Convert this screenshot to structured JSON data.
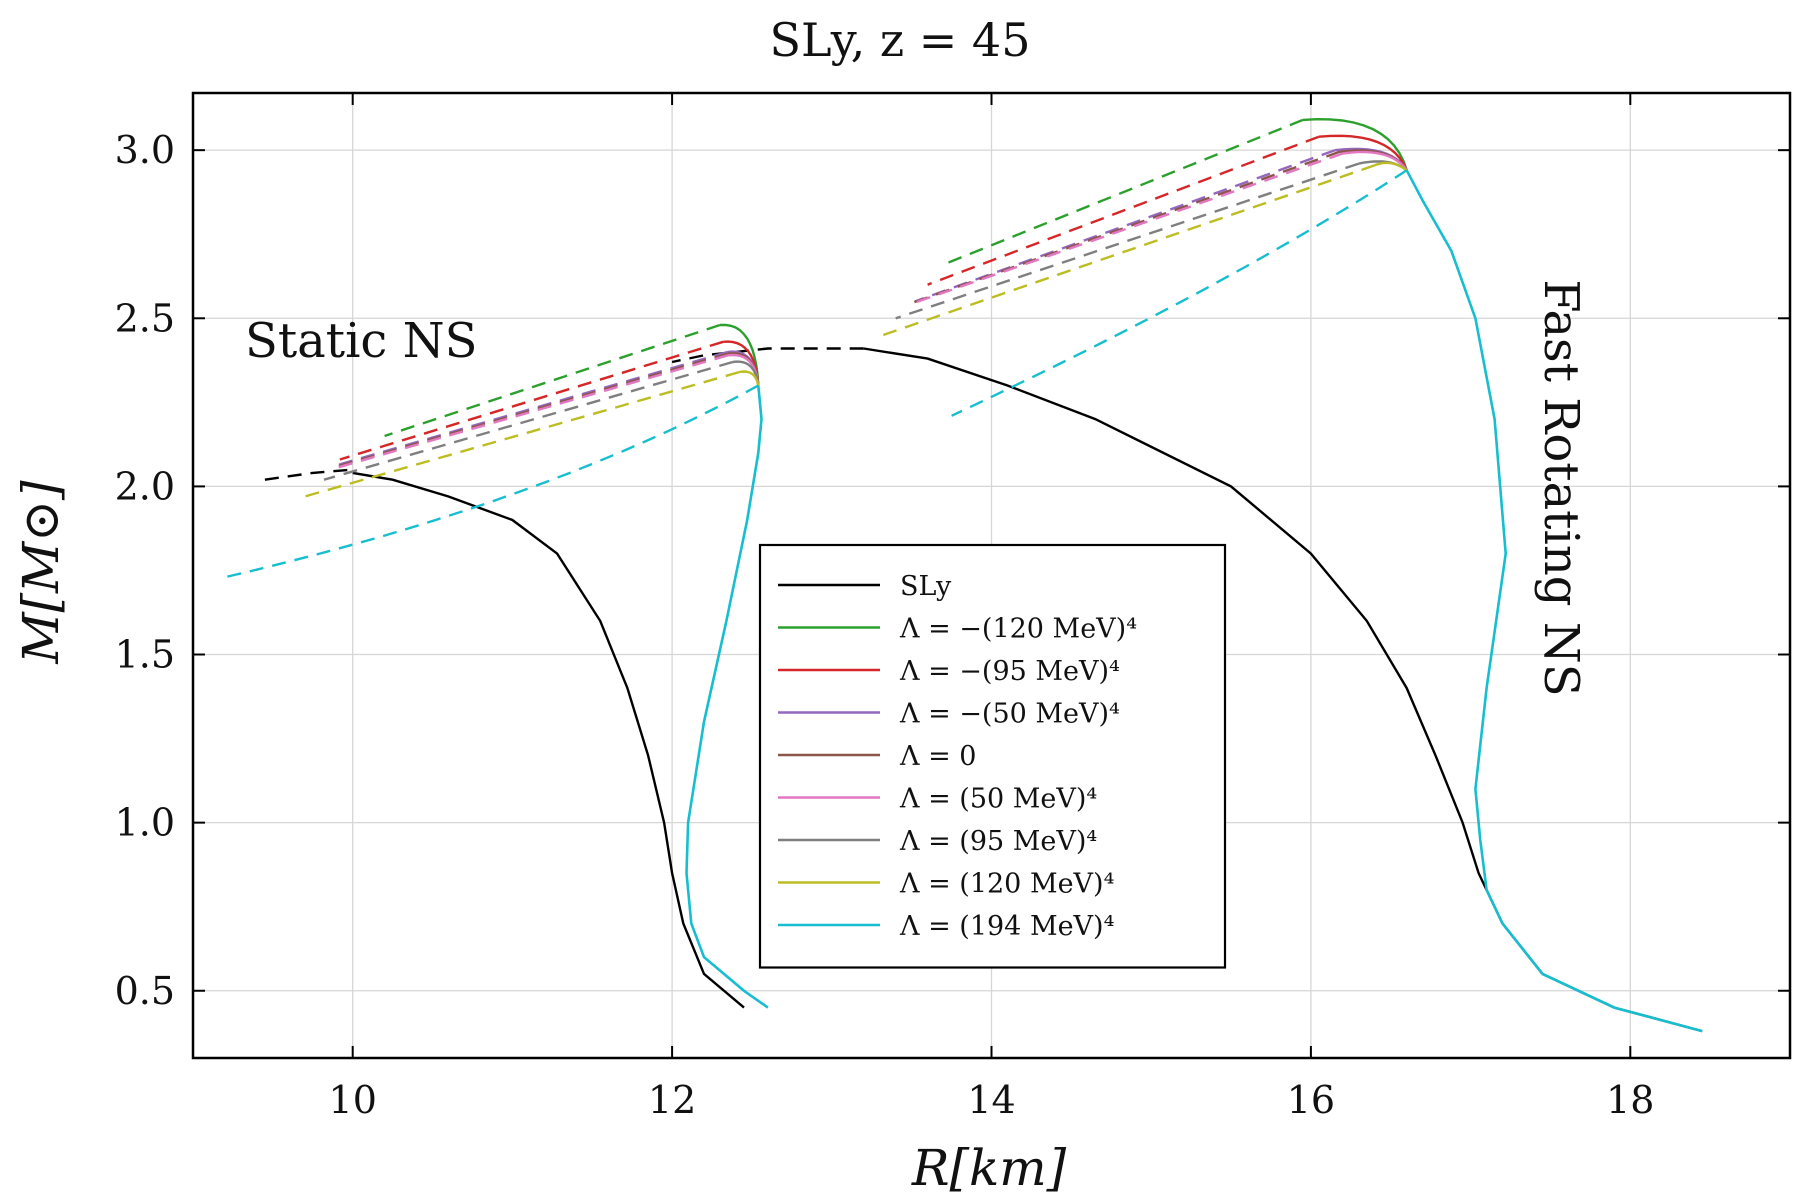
{
  "chart_data": {
    "type": "line",
    "title": "SLy,  z = 45",
    "xlabel": "R[km]",
    "ylabel": "M[M⊙]",
    "xlim": [
      9.0,
      19.0
    ],
    "ylim": [
      0.3,
      3.17
    ],
    "grid": true,
    "legend_placement": "center-bottom",
    "xticks": [
      10,
      12,
      14,
      16,
      18
    ],
    "xtick_labels": [
      "10",
      "12",
      "14",
      "16",
      "18"
    ],
    "yticks": [
      0.5,
      1.0,
      1.5,
      2.0,
      2.5,
      3.0
    ],
    "ytick_labels": [
      "0.5",
      "1.0",
      "1.5",
      "2.0",
      "2.5",
      "3.0"
    ],
    "annotations": [
      {
        "text": "Static NS",
        "x": 10.2,
        "y": 2.41,
        "rotation": 0
      },
      {
        "text": "Fast Rotating NS",
        "x": 18.75,
        "y": 2.3,
        "rotation": 90
      }
    ],
    "series": [
      {
        "name": "SLy",
        "legend": "SLy",
        "color": "#000000",
        "points": [
          [
            0.45,
            12.45
          ],
          [
            0.55,
            12.2
          ],
          [
            0.7,
            12.07
          ],
          [
            0.85,
            12.0
          ],
          [
            1.0,
            11.95
          ],
          [
            1.2,
            11.85
          ],
          [
            1.4,
            11.72
          ],
          [
            1.6,
            11.55
          ],
          [
            1.8,
            11.28
          ],
          [
            1.9,
            11.0
          ],
          [
            1.97,
            10.6
          ],
          [
            2.02,
            10.25
          ],
          [
            2.04,
            10.0
          ]
        ],
        "dashed_points": [
          [
            2.02,
            9.45
          ],
          [
            2.04,
            9.75
          ],
          [
            2.05,
            10.0
          ]
        ],
        "rot_points": [
          [
            0.38,
            18.45
          ],
          [
            0.45,
            17.9
          ],
          [
            0.55,
            17.45
          ],
          [
            0.7,
            17.2
          ],
          [
            0.85,
            17.05
          ],
          [
            1.0,
            16.95
          ],
          [
            1.2,
            16.78
          ],
          [
            1.4,
            16.6
          ],
          [
            1.6,
            16.35
          ],
          [
            1.8,
            16.0
          ],
          [
            2.0,
            15.5
          ],
          [
            2.2,
            14.65
          ],
          [
            2.3,
            14.1
          ],
          [
            2.38,
            13.6
          ],
          [
            2.41,
            13.2
          ]
        ],
        "rot_dashed_points": [
          [
            2.41,
            13.2
          ],
          [
            2.41,
            12.6
          ],
          [
            2.39,
            12.2
          ],
          [
            2.37,
            12.0
          ]
        ]
      },
      {
        "name": "lambda-neg-120",
        "legend": "Λ = −(120 MeV)⁴",
        "color": "#2ca02c",
        "peak": [
          12.3,
          2.48
        ],
        "dash_start": [
          10.2,
          2.15
        ],
        "rot_peak": [
          15.95,
          3.09
        ],
        "rot_dash_start": [
          13.7,
          2.66
        ]
      },
      {
        "name": "lambda-neg-95",
        "legend": "Λ = −(95 MeV)⁴",
        "color": "#d62728",
        "peak": [
          12.32,
          2.43
        ],
        "dash_start": [
          9.92,
          2.08
        ],
        "rot_peak": [
          16.05,
          3.04
        ],
        "rot_dash_start": [
          13.6,
          2.6
        ]
      },
      {
        "name": "lambda-neg-50",
        "legend": "Λ = −(50 MeV)⁴",
        "color": "#9467bd",
        "peak": [
          12.35,
          2.4
        ],
        "dash_start": [
          9.88,
          2.06
        ],
        "rot_peak": [
          16.15,
          3.0
        ],
        "rot_dash_start": [
          13.52,
          2.55
        ]
      },
      {
        "name": "lambda-zero",
        "legend": "Λ = 0",
        "color": "#8c564b",
        "peak": [
          12.35,
          2.395
        ],
        "dash_start": [
          9.87,
          2.055
        ],
        "rot_peak": [
          16.18,
          2.995
        ],
        "rot_dash_start": [
          13.5,
          2.545
        ]
      },
      {
        "name": "lambda-pos-50",
        "legend": "Λ = (50 MeV)⁴",
        "color": "#e377c2",
        "peak": [
          12.35,
          2.39
        ],
        "dash_start": [
          9.86,
          2.05
        ],
        "rot_peak": [
          16.2,
          2.99
        ],
        "rot_dash_start": [
          13.48,
          2.54
        ]
      },
      {
        "name": "lambda-pos-95",
        "legend": "Λ = (95 MeV)⁴",
        "color": "#7f7f7f",
        "peak": [
          12.38,
          2.37
        ],
        "dash_start": [
          9.82,
          2.02
        ],
        "rot_peak": [
          16.3,
          2.96
        ],
        "rot_dash_start": [
          13.4,
          2.5
        ]
      },
      {
        "name": "lambda-pos-120",
        "legend": "Λ = (120 MeV)⁴",
        "color": "#bcbd22",
        "peak": [
          12.42,
          2.34
        ],
        "dash_start": [
          9.7,
          1.97
        ],
        "rot_peak": [
          16.4,
          2.955
        ],
        "rot_dash_start": [
          13.32,
          2.45
        ]
      },
      {
        "name": "lambda-pos-194",
        "legend": "Λ = (194 MeV)⁴",
        "color": "#17becf",
        "dash_start": [
          9.2,
          1.73
        ],
        "rot_dash_start": [
          13.75,
          2.21
        ]
      }
    ],
    "common_static_branch": [
      [
        0.45,
        12.6
      ],
      [
        0.5,
        12.45
      ],
      [
        0.6,
        12.2
      ],
      [
        0.7,
        12.12
      ],
      [
        0.85,
        12.09
      ],
      [
        1.0,
        12.1
      ],
      [
        1.3,
        12.2
      ],
      [
        1.6,
        12.34
      ],
      [
        1.9,
        12.47
      ],
      [
        2.1,
        12.54
      ],
      [
        2.2,
        12.56
      ],
      [
        2.3,
        12.54
      ]
    ],
    "common_rotating_branch": [
      [
        0.38,
        18.45
      ],
      [
        0.45,
        17.9
      ],
      [
        0.55,
        17.45
      ],
      [
        0.7,
        17.2
      ],
      [
        0.8,
        17.1
      ],
      [
        0.95,
        17.06
      ],
      [
        1.1,
        17.03
      ],
      [
        1.4,
        17.1
      ],
      [
        1.8,
        17.22
      ],
      [
        2.2,
        17.15
      ],
      [
        2.5,
        17.03
      ],
      [
        2.7,
        16.88
      ],
      [
        2.85,
        16.7
      ],
      [
        2.94,
        16.6
      ]
    ]
  }
}
